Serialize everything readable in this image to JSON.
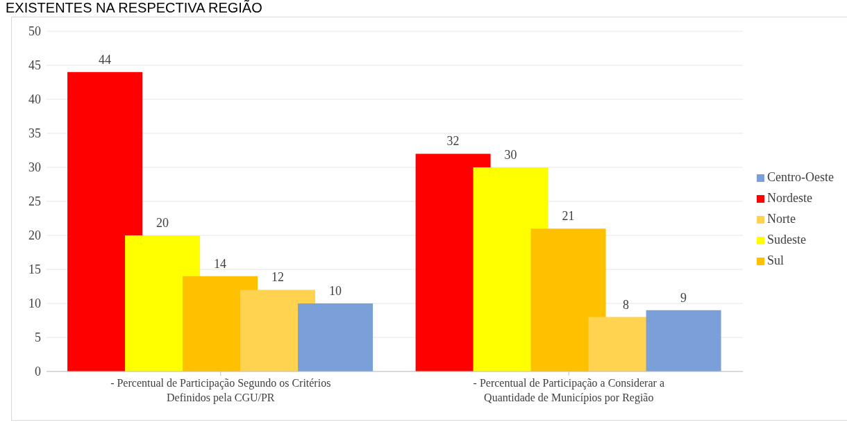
{
  "chart_data": {
    "type": "bar",
    "title": "EXISTENTES NA RESPECTIVA REGIÃO",
    "categories": [
      "- Percentual de Participação Segundo os Critérios Definidos pela CGU/PR",
      "- Percentual de Participação a Considerar a Quantidade de Municípios por Região"
    ],
    "series": [
      {
        "name": "Nordeste",
        "color": "#ff0000",
        "values": [
          44,
          32
        ]
      },
      {
        "name": "Sudeste",
        "color": "#ffff00",
        "values": [
          20,
          30
        ]
      },
      {
        "name": "Sul",
        "color": "#ffc000",
        "values": [
          14,
          21
        ]
      },
      {
        "name": "Norte",
        "color": "#ffd34f",
        "values": [
          12,
          8
        ]
      },
      {
        "name": "Centro-Oeste",
        "color": "#7b9fd9",
        "values": [
          10,
          9
        ]
      }
    ],
    "ylim": [
      0,
      50
    ],
    "yticks": [
      0,
      5,
      10,
      15,
      20,
      25,
      30,
      35,
      40,
      45,
      50
    ],
    "grid": "y",
    "legend": "right",
    "data_labels": true
  }
}
